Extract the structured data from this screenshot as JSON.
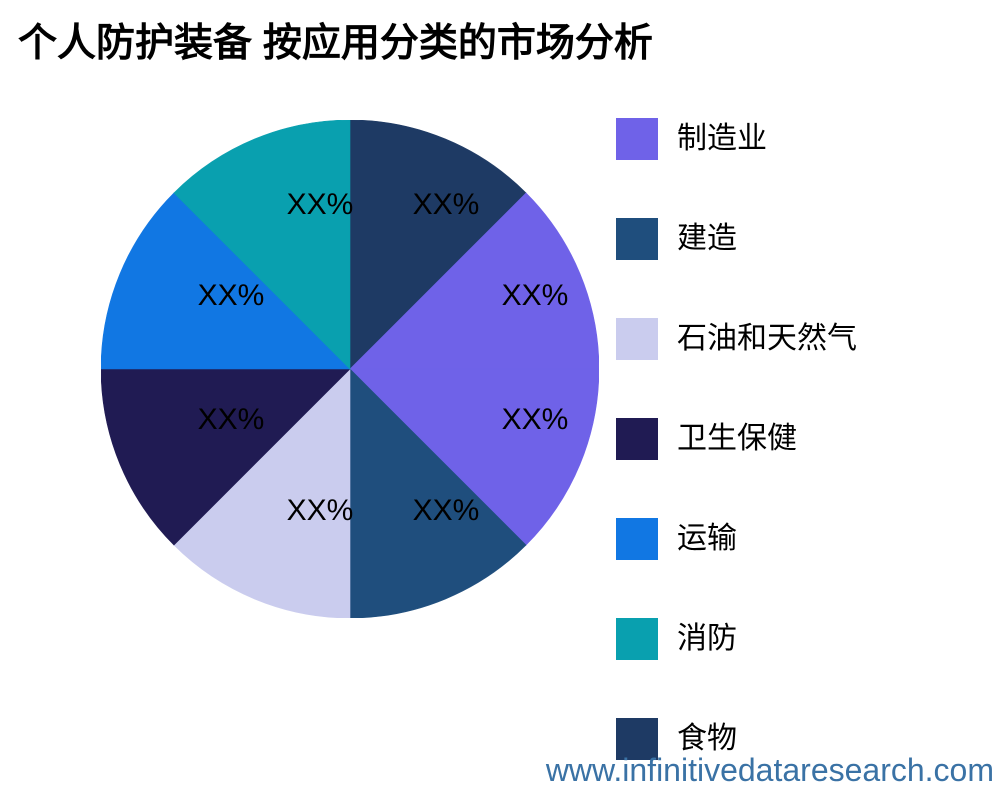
{
  "title": "个人防护装备 按应用分类的市场分析",
  "watermark": "www.infinitivedataresearch.com",
  "colors": {
    "background": "#FFFFFF",
    "title_text": "#000000",
    "label_text": "#000000",
    "watermark_text": "#3A72A5"
  },
  "legend": {
    "position": "right",
    "items": [
      {
        "label": "制造业",
        "color": "#6F62E8"
      },
      {
        "label": "建造",
        "color": "#1F4E7D"
      },
      {
        "label": "石油和天然气",
        "color": "#CACCEE"
      },
      {
        "label": "卫生保健",
        "color": "#201B53"
      },
      {
        "label": "运输",
        "color": "#1177E3"
      },
      {
        "label": "消防",
        "color": "#09A0AF"
      },
      {
        "label": "食物",
        "color": "#1E3A64"
      }
    ]
  },
  "chart_data": {
    "type": "pie",
    "title": "个人防护装备 按应用分类的市场分析",
    "legend_position": "right",
    "start_angle": "top",
    "direction": "clockwise",
    "note": "percent values are masked as XX% in the source image; slice geometry is 45 degrees each, manufacturing occupies two adjacent 45-degree wedges (90 degrees total)",
    "slices": [
      {
        "category": "食物",
        "color": "#1E3A64",
        "label": "XX%",
        "sweep_deg": 45,
        "percent_of_circle": 12.5
      },
      {
        "category": "制造业",
        "color": "#6F62E8",
        "label": "XX%",
        "sweep_deg": 45,
        "percent_of_circle": 12.5
      },
      {
        "category": "制造业",
        "color": "#6F62E8",
        "label": "XX%",
        "sweep_deg": 45,
        "percent_of_circle": 12.5
      },
      {
        "category": "建造",
        "color": "#1F4E7D",
        "label": "XX%",
        "sweep_deg": 45,
        "percent_of_circle": 12.5
      },
      {
        "category": "石油和天然气",
        "color": "#CACCEE",
        "label": "XX%",
        "sweep_deg": 45,
        "percent_of_circle": 12.5
      },
      {
        "category": "卫生保健",
        "color": "#201B53",
        "label": "XX%",
        "sweep_deg": 45,
        "percent_of_circle": 12.5
      },
      {
        "category": "运输",
        "color": "#1177E3",
        "label": "XX%",
        "sweep_deg": 45,
        "percent_of_circle": 12.5
      },
      {
        "category": "消防",
        "color": "#09A0AF",
        "label": "XX%",
        "sweep_deg": 45,
        "percent_of_circle": 12.5
      }
    ]
  }
}
